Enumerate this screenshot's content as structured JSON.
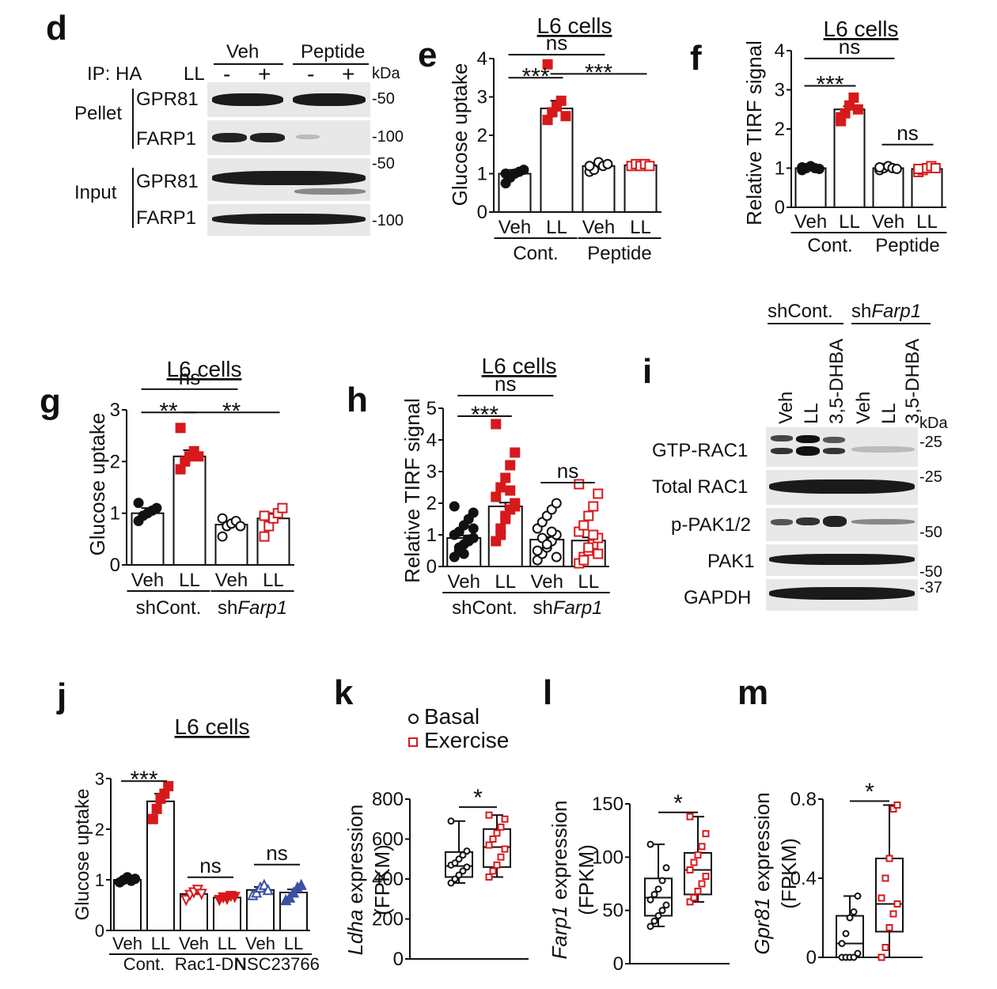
{
  "panels": {
    "d": {
      "letter": "d",
      "ip": "IP: HA",
      "ll": "LL",
      "groups": [
        "Veh",
        "Peptide"
      ],
      "lanes": [
        "-",
        "+",
        "-",
        "+"
      ],
      "kda": "kDa",
      "rows": [
        {
          "group": "Pellet",
          "proteins": [
            "GPR81",
            "FARP1"
          ]
        },
        {
          "group": "Input",
          "proteins": [
            "GPR81",
            "FARP1"
          ]
        }
      ],
      "markers": [
        "-50",
        "-100",
        "-50",
        "-100"
      ]
    },
    "i": {
      "letter": "i",
      "groups": [
        "shCont.",
        "shFarp1"
      ],
      "lanes": [
        "Veh",
        "LL",
        "3,5-DHBA",
        "Veh",
        "LL",
        "3,5-DHBA"
      ],
      "kda": "kDa",
      "proteins": [
        "GTP-RAC1",
        "Total RAC1",
        "p-PAK1/2",
        "PAK1",
        "GAPDH"
      ],
      "markers": [
        "-25",
        "-25",
        "-50",
        "-50",
        "-37"
      ]
    }
  },
  "legend_k": {
    "items": [
      "Basal",
      "Exercise"
    ]
  },
  "colors": {
    "black": "#111111",
    "red": "#d7191c",
    "blue": "#3d4fa3"
  },
  "chart_data": [
    {
      "id": "e",
      "letter": "e",
      "type": "bar",
      "title": "L6 cells",
      "ylabel": "Glucose uptake",
      "ylim": [
        0,
        4
      ],
      "yticks": [
        0,
        1,
        2,
        3,
        4
      ],
      "categories": [
        "Veh",
        "LL",
        "Veh",
        "LL"
      ],
      "group_labels": [
        "Cont.",
        "Peptide"
      ],
      "values": [
        1.0,
        2.7,
        1.2,
        1.22
      ],
      "errors": [
        0.1,
        0.2,
        0.08,
        0.04
      ],
      "points": [
        [
          0.75,
          0.9,
          1.0,
          1.05,
          1.1,
          1.0
        ],
        [
          2.4,
          2.6,
          2.75,
          2.9,
          2.5,
          3.85
        ],
        [
          1.05,
          1.1,
          1.3,
          1.2,
          1.25,
          1.2
        ],
        [
          1.2,
          1.25,
          1.2,
          1.25,
          1.2
        ]
      ],
      "point_colors": [
        "black",
        "red",
        "black",
        "red"
      ],
      "hollow": [
        false,
        false,
        true,
        true
      ],
      "sig": [
        {
          "label": "***",
          "from": 0,
          "to": 1,
          "y": 3.5
        },
        {
          "label": "***",
          "from": 1,
          "to": 3,
          "y": 3.6
        },
        {
          "label": "ns",
          "from": 0,
          "to": 2,
          "y": 4.1
        }
      ]
    },
    {
      "id": "f",
      "letter": "f",
      "type": "bar",
      "title": "L6 cells",
      "ylabel": "Relative TIRF signal",
      "ylim": [
        0,
        4
      ],
      "yticks": [
        0,
        1,
        2,
        3,
        4
      ],
      "categories": [
        "Veh",
        "LL",
        "Veh",
        "LL"
      ],
      "group_labels": [
        "Cont.",
        "Peptide"
      ],
      "values": [
        1.0,
        2.5,
        1.0,
        0.98
      ],
      "errors": [
        0.03,
        0.08,
        0.03,
        0.03
      ],
      "points": [
        [
          0.95,
          1.0,
          1.05,
          1.0,
          0.98,
          1.02
        ],
        [
          2.2,
          2.4,
          2.6,
          2.8,
          2.5,
          2.3
        ],
        [
          0.95,
          1.0,
          1.05,
          1.0,
          0.98,
          1.02
        ],
        [
          0.9,
          0.95,
          1.0,
          1.05,
          1.0,
          0.98
        ]
      ],
      "point_colors": [
        "black",
        "red",
        "black",
        "red"
      ],
      "hollow": [
        false,
        false,
        true,
        true
      ],
      "sig": [
        {
          "label": "***",
          "from": 0,
          "to": 1,
          "y": 3.1
        },
        {
          "label": "ns",
          "from": 0,
          "to": 2,
          "y": 3.8
        },
        {
          "label": "ns",
          "from": 2,
          "to": 3,
          "y": 1.6
        }
      ]
    },
    {
      "id": "g",
      "letter": "g",
      "type": "bar",
      "title": "L6 cells",
      "ylabel": "Glucose uptake",
      "ylim": [
        0,
        3
      ],
      "yticks": [
        0,
        1,
        2,
        3
      ],
      "categories": [
        "Veh",
        "LL",
        "Veh",
        "LL"
      ],
      "group_labels": [
        "shCont.",
        "shFarp1"
      ],
      "values": [
        1.0,
        2.1,
        0.78,
        0.9
      ],
      "errors": [
        0.1,
        0.12,
        0.06,
        0.1
      ],
      "points": [
        [
          0.85,
          0.95,
          1.0,
          1.05,
          1.1,
          1.2
        ],
        [
          1.85,
          2.0,
          2.1,
          2.2,
          2.1,
          2.65
        ],
        [
          0.55,
          0.75,
          0.8,
          0.85,
          0.75,
          0.9
        ],
        [
          0.55,
          0.75,
          0.9,
          1.0,
          1.1,
          0.95
        ]
      ],
      "point_colors": [
        "black",
        "red",
        "black",
        "red"
      ],
      "hollow": [
        false,
        false,
        true,
        true
      ],
      "sig": [
        {
          "label": "**",
          "from": 0,
          "to": 1,
          "y": 2.95
        },
        {
          "label": "**",
          "from": 1,
          "to": 3,
          "y": 2.95
        },
        {
          "label": "ns",
          "from": 0,
          "to": 2,
          "y": 3.4
        }
      ]
    },
    {
      "id": "h",
      "letter": "h",
      "type": "bar",
      "title": "L6 cells",
      "ylabel": "Relative TIRF signal",
      "ylim": [
        0,
        5
      ],
      "yticks": [
        0,
        1,
        2,
        3,
        4,
        5
      ],
      "categories": [
        "Veh",
        "LL",
        "Veh",
        "LL"
      ],
      "group_labels": [
        "shCont.",
        "shFarp1"
      ],
      "values": [
        0.9,
        1.9,
        0.85,
        0.82
      ],
      "errors": [
        0.08,
        0.12,
        0.08,
        0.1
      ],
      "points": [
        [
          0.3,
          0.5,
          0.7,
          0.8,
          0.9,
          1.0,
          1.1,
          1.3,
          1.5,
          1.7,
          1.9,
          0.6,
          0.4,
          0.85,
          1.2
        ],
        [
          0.8,
          1.2,
          1.5,
          1.8,
          2.0,
          2.2,
          2.5,
          2.8,
          3.2,
          3.6,
          4.5,
          1.0,
          1.6,
          2.4,
          1.9
        ],
        [
          0.2,
          0.4,
          0.6,
          0.8,
          1.0,
          1.2,
          1.4,
          1.6,
          1.8,
          2.0,
          0.5,
          0.9,
          0.7,
          1.1,
          0.3
        ],
        [
          0.1,
          0.3,
          0.5,
          0.7,
          0.9,
          1.1,
          1.3,
          1.6,
          1.9,
          2.3,
          2.6,
          0.2,
          0.6,
          1.0,
          0.4
        ]
      ],
      "point_colors": [
        "black",
        "red",
        "black",
        "red"
      ],
      "hollow": [
        false,
        false,
        true,
        true
      ],
      "sig": [
        {
          "label": "***",
          "from": 0,
          "to": 1,
          "y": 4.75
        },
        {
          "label": "ns",
          "from": 0,
          "to": 2,
          "y": 5.4
        },
        {
          "label": "ns",
          "from": 2,
          "to": 3,
          "y": 2.65
        }
      ]
    },
    {
      "id": "j",
      "letter": "j",
      "type": "bar",
      "title": "L6 cells",
      "ylabel": "Glucose uptake",
      "ylim": [
        0,
        3
      ],
      "yticks": [
        0,
        1,
        2,
        3
      ],
      "categories": [
        "Veh",
        "LL",
        "Veh",
        "LL",
        "Veh",
        "LL"
      ],
      "group_labels": [
        "Cont.",
        "Rac1-DN",
        "NSC23766"
      ],
      "values": [
        1.0,
        2.55,
        0.72,
        0.65,
        0.8,
        0.75
      ],
      "errors": [
        0.05,
        0.15,
        0.06,
        0.04,
        0.06,
        0.06
      ],
      "points": [
        [
          0.95,
          1.0,
          1.05,
          0.98,
          1.02
        ],
        [
          2.2,
          2.4,
          2.6,
          2.7,
          2.85
        ],
        [
          0.6,
          0.7,
          0.75,
          0.8,
          0.72
        ],
        [
          0.6,
          0.65,
          0.62,
          0.68,
          0.66
        ],
        [
          0.7,
          0.75,
          0.85,
          0.9,
          0.8
        ],
        [
          0.6,
          0.65,
          0.75,
          0.85,
          0.9
        ]
      ],
      "point_colors": [
        "black",
        "red",
        "red",
        "red",
        "blue",
        "blue"
      ],
      "markers": [
        "circle",
        "square",
        "tri-down",
        "tri-down",
        "tri-up",
        "tri-up"
      ],
      "hollow": [
        false,
        false,
        true,
        false,
        true,
        false
      ],
      "sig": [
        {
          "label": "***",
          "from": 0,
          "to": 1,
          "y": 2.95
        },
        {
          "label": "ns",
          "from": 2,
          "to": 3,
          "y": 1.05
        },
        {
          "label": "ns",
          "from": 4,
          "to": 5,
          "y": 1.3
        }
      ]
    },
    {
      "id": "k",
      "letter": "k",
      "type": "box",
      "ylabel_italic": "Ldha",
      "ylabel_rest": " expression",
      "ylabel2": "(FPKM)",
      "ylim": [
        0,
        800
      ],
      "yticks": [
        0,
        200,
        400,
        600,
        800
      ],
      "series": [
        {
          "name": "Basal",
          "min": 380,
          "q1": 410,
          "median": 465,
          "q3": 535,
          "max": 690,
          "points": [
            380,
            400,
            420,
            440,
            460,
            470,
            480,
            500,
            520,
            540,
            690
          ]
        },
        {
          "name": "Exercise",
          "min": 410,
          "q1": 460,
          "median": 560,
          "q3": 650,
          "max": 720,
          "points": [
            410,
            440,
            470,
            510,
            550,
            570,
            600,
            630,
            660,
            700,
            720
          ]
        }
      ],
      "sig": {
        "label": "*",
        "y": 760
      }
    },
    {
      "id": "l",
      "letter": "l",
      "type": "box",
      "ylabel_italic": "Farp1",
      "ylabel_rest": " expression",
      "ylabel2": "(FPKM)",
      "ylim": [
        0,
        150
      ],
      "yticks": [
        0,
        50,
        100,
        150
      ],
      "series": [
        {
          "name": "Basal",
          "min": 35,
          "q1": 45,
          "median": 62,
          "q3": 80,
          "max": 112,
          "points": [
            35,
            40,
            45,
            50,
            55,
            60,
            65,
            70,
            78,
            90,
            112
          ]
        },
        {
          "name": "Exercise",
          "min": 58,
          "q1": 65,
          "median": 88,
          "q3": 104,
          "max": 138,
          "points": [
            58,
            62,
            68,
            75,
            82,
            88,
            95,
            102,
            110,
            122,
            138
          ]
        }
      ],
      "sig": {
        "label": "*",
        "y": 142
      }
    },
    {
      "id": "m",
      "letter": "m",
      "type": "box",
      "ylabel_italic": "Gpr81",
      "ylabel_rest": " expression",
      "ylabel2": "(FPKM)",
      "ylim": [
        0,
        0.8
      ],
      "yticks": [
        0,
        0.4,
        0.8
      ],
      "series": [
        {
          "name": "Basal",
          "min": 0.0,
          "q1": 0.0,
          "median": 0.07,
          "q3": 0.21,
          "max": 0.31,
          "points": [
            0.0,
            0.0,
            0.0,
            0.0,
            0.02,
            0.07,
            0.12,
            0.2,
            0.23,
            0.31
          ]
        },
        {
          "name": "Exercise",
          "min": 0.0,
          "q1": 0.13,
          "median": 0.27,
          "q3": 0.5,
          "max": 0.77,
          "points": [
            0.0,
            0.05,
            0.15,
            0.22,
            0.27,
            0.3,
            0.4,
            0.5,
            0.75,
            0.77
          ]
        }
      ],
      "sig": {
        "label": "*",
        "y": 0.79
      }
    }
  ]
}
